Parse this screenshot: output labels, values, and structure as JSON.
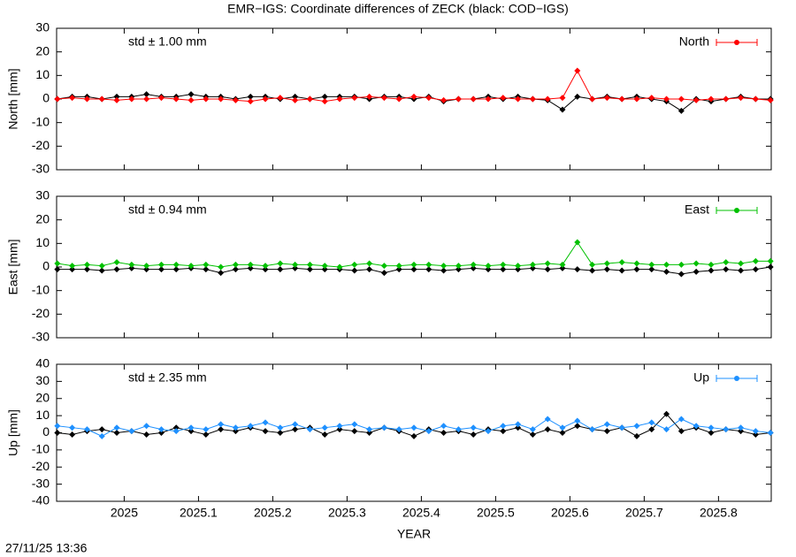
{
  "title": "EMR−IGS: Coordinate differences of ZECK (black: COD−IGS)",
  "timestamp": "27/11/25 13:36",
  "chart_data": [
    {
      "type": "line",
      "ylabel": "North [mm]",
      "annotation": "std ± 1.00 mm",
      "annotation_color": "#ff0000",
      "x": [
        2024.91,
        2024.93,
        2024.95,
        2024.97,
        2024.99,
        2025.01,
        2025.03,
        2025.05,
        2025.07,
        2025.09,
        2025.11,
        2025.13,
        2025.15,
        2025.17,
        2025.19,
        2025.21,
        2025.23,
        2025.25,
        2025.27,
        2025.29,
        2025.31,
        2025.33,
        2025.35,
        2025.37,
        2025.39,
        2025.41,
        2025.43,
        2025.45,
        2025.47,
        2025.49,
        2025.51,
        2025.53,
        2025.55,
        2025.57,
        2025.59,
        2025.61,
        2025.63,
        2025.65,
        2025.67,
        2025.69,
        2025.71,
        2025.73,
        2025.75,
        2025.77,
        2025.79,
        2025.81,
        2025.83,
        2025.85,
        2025.87
      ],
      "xlim": [
        2024.909,
        2025.871
      ],
      "xticks": [
        2025,
        2025.1,
        2025.2,
        2025.3,
        2025.4,
        2025.5,
        2025.6,
        2025.7,
        2025.8
      ],
      "ylim": [
        -30,
        30
      ],
      "yticks": [
        -30,
        -20,
        -10,
        0,
        10,
        20,
        30
      ],
      "legend": "top-right",
      "series": [
        {
          "color": "#000000",
          "values": [
            0,
            1,
            1,
            0,
            1,
            1,
            2,
            1,
            1,
            2,
            1,
            1,
            0,
            1,
            1,
            0,
            1,
            0,
            1,
            1,
            1,
            0,
            1,
            1,
            0,
            1,
            -1,
            0,
            0,
            1,
            0,
            1,
            0,
            -0.5,
            -4.5,
            1,
            0,
            1,
            0,
            1,
            0,
            -1,
            -5,
            0,
            -1,
            0,
            1,
            0,
            0
          ]
        },
        {
          "name": "North",
          "color": "#ff0000",
          "values": [
            0,
            0.5,
            0,
            0,
            -0.5,
            0,
            0,
            0.5,
            0,
            -0.5,
            0,
            0,
            -0.5,
            -1,
            0,
            0.5,
            -0.5,
            0,
            -1,
            0,
            0.5,
            1,
            0.5,
            0,
            1,
            0.5,
            -0.5,
            0,
            0,
            0,
            0.5,
            0,
            0,
            0,
            0.5,
            12,
            0,
            0.5,
            0,
            0,
            0.5,
            0,
            0,
            -0.5,
            0,
            0,
            0.5,
            0,
            -0.5
          ]
        }
      ]
    },
    {
      "type": "line",
      "ylabel": "East [mm]",
      "annotation": "std ± 0.94 mm",
      "annotation_color": "#00c000",
      "x": [
        2024.91,
        2024.93,
        2024.95,
        2024.97,
        2024.99,
        2025.01,
        2025.03,
        2025.05,
        2025.07,
        2025.09,
        2025.11,
        2025.13,
        2025.15,
        2025.17,
        2025.19,
        2025.21,
        2025.23,
        2025.25,
        2025.27,
        2025.29,
        2025.31,
        2025.33,
        2025.35,
        2025.37,
        2025.39,
        2025.41,
        2025.43,
        2025.45,
        2025.47,
        2025.49,
        2025.51,
        2025.53,
        2025.55,
        2025.57,
        2025.59,
        2025.61,
        2025.63,
        2025.65,
        2025.67,
        2025.69,
        2025.71,
        2025.73,
        2025.75,
        2025.77,
        2025.79,
        2025.81,
        2025.83,
        2025.85,
        2025.87
      ],
      "xlim": [
        2024.909,
        2025.871
      ],
      "xticks": [
        2025,
        2025.1,
        2025.2,
        2025.3,
        2025.4,
        2025.5,
        2025.6,
        2025.7,
        2025.8
      ],
      "ylim": [
        -30,
        30
      ],
      "yticks": [
        -30,
        -20,
        -10,
        0,
        10,
        20,
        30
      ],
      "legend": "top-right",
      "series": [
        {
          "color": "#000000",
          "values": [
            -1,
            -1,
            -1,
            -1.5,
            -1,
            -0.5,
            -1,
            -1,
            -1,
            -0.5,
            -1,
            -2.5,
            -1,
            -0.5,
            -1,
            -1,
            -0.5,
            -1,
            -1,
            -1,
            -1.5,
            -1,
            -2.5,
            -1,
            -1,
            -1,
            -1.5,
            -1,
            -0.5,
            -1,
            -1,
            -1,
            -0.5,
            -1,
            -0.5,
            -1,
            -1.5,
            -1,
            -1.5,
            -1,
            -1,
            -2,
            -3,
            -2,
            -1.5,
            -1,
            -1.5,
            -1,
            0
          ]
        },
        {
          "name": "East",
          "color": "#00c000",
          "values": [
            1.5,
            0.5,
            1,
            0.5,
            2,
            1,
            0.5,
            1,
            1,
            0.5,
            1,
            0,
            1,
            1,
            0.5,
            1.5,
            1,
            1,
            0.5,
            0,
            1,
            1.5,
            0.5,
            0.5,
            1,
            1,
            0.5,
            0.5,
            1,
            0.5,
            1,
            0.5,
            1,
            1.5,
            1,
            10.5,
            1,
            1.5,
            2,
            1.5,
            1,
            1,
            1,
            1.5,
            1,
            2,
            1.5,
            2.5,
            2.5
          ]
        }
      ]
    },
    {
      "type": "line",
      "ylabel": "Up [mm]",
      "annotation": "std ± 2.35 mm",
      "annotation_color": "#1e90ff",
      "xlabel": "YEAR",
      "x": [
        2024.91,
        2024.93,
        2024.95,
        2024.97,
        2024.99,
        2025.01,
        2025.03,
        2025.05,
        2025.07,
        2025.09,
        2025.11,
        2025.13,
        2025.15,
        2025.17,
        2025.19,
        2025.21,
        2025.23,
        2025.25,
        2025.27,
        2025.29,
        2025.31,
        2025.33,
        2025.35,
        2025.37,
        2025.39,
        2025.41,
        2025.43,
        2025.45,
        2025.47,
        2025.49,
        2025.51,
        2025.53,
        2025.55,
        2025.57,
        2025.59,
        2025.61,
        2025.63,
        2025.65,
        2025.67,
        2025.69,
        2025.71,
        2025.73,
        2025.75,
        2025.77,
        2025.79,
        2025.81,
        2025.83,
        2025.85,
        2025.87
      ],
      "xlim": [
        2024.909,
        2025.871
      ],
      "xticks": [
        2025,
        2025.1,
        2025.2,
        2025.3,
        2025.4,
        2025.5,
        2025.6,
        2025.7,
        2025.8
      ],
      "ylim": [
        -40,
        40
      ],
      "yticks": [
        -40,
        -30,
        -20,
        -10,
        0,
        10,
        20,
        30,
        40
      ],
      "legend": "top-right",
      "series": [
        {
          "color": "#000000",
          "values": [
            0,
            -1,
            1,
            2,
            0,
            1,
            -1,
            0,
            3,
            1,
            -1,
            2,
            1,
            3,
            1,
            0,
            2,
            3,
            -1,
            2,
            1,
            0,
            3,
            1,
            -2,
            2,
            0,
            1,
            -1,
            2,
            1,
            3,
            -1,
            2,
            0,
            4,
            2,
            1,
            3,
            -2,
            2,
            11,
            1,
            3,
            0,
            2,
            1,
            -1,
            0
          ]
        },
        {
          "name": "Up",
          "color": "#1e90ff",
          "values": [
            4,
            3,
            2,
            -2,
            3,
            1,
            4,
            2,
            1,
            3,
            2,
            5,
            3,
            4,
            6,
            3,
            5,
            2,
            3,
            4,
            5,
            2,
            3,
            2,
            3,
            1,
            4,
            2,
            3,
            1,
            4,
            5,
            2,
            8,
            3,
            7,
            2,
            5,
            3,
            4,
            6,
            2,
            8,
            4,
            3,
            2,
            3,
            1,
            0
          ]
        }
      ]
    }
  ]
}
